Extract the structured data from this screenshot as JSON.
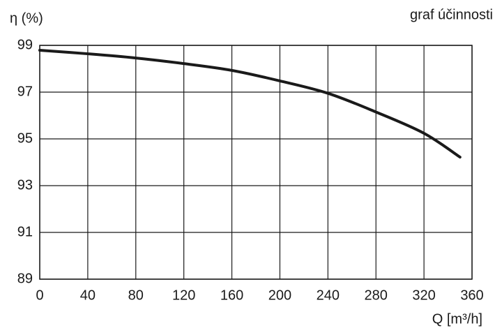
{
  "chart_data": {
    "type": "line",
    "title": "graf účinnosti",
    "y_label": "η (%)",
    "x_label": "Q [m³/h]",
    "x": [
      0,
      40,
      80,
      120,
      160,
      200,
      240,
      280,
      320,
      350
    ],
    "values": [
      98.79,
      98.64,
      98.46,
      98.22,
      97.93,
      97.48,
      96.95,
      96.15,
      95.24,
      94.22
    ],
    "color": "#1a1a1a",
    "xlim": [
      0,
      360
    ],
    "xticks": [
      0,
      40,
      80,
      120,
      160,
      200,
      240,
      280,
      320,
      360
    ],
    "ylim": [
      89,
      99
    ],
    "yticks": [
      89,
      91,
      93,
      95,
      97,
      99
    ],
    "grid": true
  }
}
